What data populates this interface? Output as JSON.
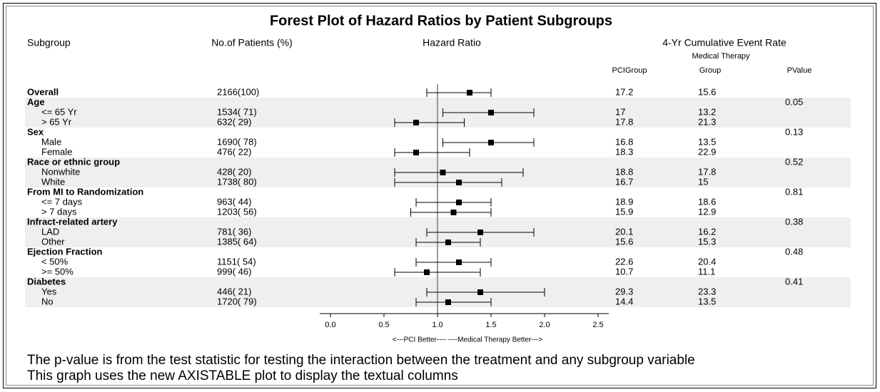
{
  "chart_data": {
    "type": "forest",
    "title": "Forest Plot of Hazard Ratios by Patient Subgroups",
    "columns": {
      "subgroup": "Subgroup",
      "patients": "No.of Patients (%)",
      "hazard_ratio": "Hazard Ratio",
      "event_rate": "4-Yr Cumulative Event Rate",
      "medical_top": "Medical Therapy",
      "pci": "PCIGroup",
      "medical": "Group",
      "pvalue": "PValue"
    },
    "x_axis_label": "<---PCI Better----    ----Medical Therapy Better--->",
    "xlim": [
      -0.1,
      2.6
    ],
    "xticks": [
      {
        "value": 0,
        "label": "0.0"
      },
      0.5,
      {
        "value": 1,
        "label": "1.0"
      },
      1.5,
      {
        "value": 2,
        "label": "2.0"
      },
      2.5
    ],
    "reference_line": 1,
    "marker_color": "#000000",
    "band_color": "#efefef",
    "overall": {
      "label": "Overall",
      "patients": "2166(100)",
      "hr": 1.3,
      "lower": 0.9,
      "upper": 1.5,
      "pci": 17.2,
      "medical": 15.6
    },
    "groups": [
      {
        "label": "Age",
        "pvalue": 0.05,
        "rows": [
          {
            "label": "<= 65 Yr",
            "patients": "1534( 71)",
            "hr": 1.5,
            "lower": 1.05,
            "upper": 1.9,
            "pci": 17,
            "medical": 13.2
          },
          {
            "label": "> 65 Yr",
            "patients": "632( 29)",
            "hr": 0.8,
            "lower": 0.6,
            "upper": 1.25,
            "pci": 17.8,
            "medical": 21.3
          }
        ]
      },
      {
        "label": "Sex",
        "pvalue": 0.13,
        "rows": [
          {
            "label": "Male",
            "patients": "1690( 78)",
            "hr": 1.5,
            "lower": 1.05,
            "upper": 1.9,
            "pci": 16.8,
            "medical": 13.5
          },
          {
            "label": "Female",
            "patients": "476( 22)",
            "hr": 0.8,
            "lower": 0.6,
            "upper": 1.3,
            "pci": 18.3,
            "medical": 22.9
          }
        ]
      },
      {
        "label": "Race or ethnic group",
        "pvalue": 0.52,
        "rows": [
          {
            "label": "Nonwhite",
            "patients": "428( 20)",
            "hr": 1.05,
            "lower": 0.6,
            "upper": 1.8,
            "pci": 18.8,
            "medical": 17.8
          },
          {
            "label": "White",
            "patients": "1738( 80)",
            "hr": 1.2,
            "lower": 0.6,
            "upper": 1.6,
            "pci": 16.7,
            "medical": 15
          }
        ]
      },
      {
        "label": "From MI to Randomization",
        "pvalue": 0.81,
        "rows": [
          {
            "label": "<= 7 days",
            "patients": "963( 44)",
            "hr": 1.2,
            "lower": 0.8,
            "upper": 1.5,
            "pci": 18.9,
            "medical": 18.6
          },
          {
            "label": "> 7 days",
            "patients": "1203( 56)",
            "hr": 1.15,
            "lower": 0.75,
            "upper": 1.5,
            "pci": 15.9,
            "medical": 12.9
          }
        ]
      },
      {
        "label": "Infract-related artery",
        "pvalue": 0.38,
        "rows": [
          {
            "label": "LAD",
            "patients": "781( 36)",
            "hr": 1.4,
            "lower": 0.9,
            "upper": 1.9,
            "pci": 20.1,
            "medical": 16.2
          },
          {
            "label": "Other",
            "patients": "1385( 64)",
            "hr": 1.1,
            "lower": 0.8,
            "upper": 1.4,
            "pci": 15.6,
            "medical": 15.3
          }
        ]
      },
      {
        "label": "Ejection Fraction",
        "pvalue": 0.48,
        "rows": [
          {
            "label": "< 50%",
            "patients": "1151( 54)",
            "hr": 1.2,
            "lower": 0.8,
            "upper": 1.5,
            "pci": 22.6,
            "medical": 20.4
          },
          {
            "label": ">= 50%",
            "patients": "999( 46)",
            "hr": 0.9,
            "lower": 0.6,
            "upper": 1.4,
            "pci": 10.7,
            "medical": 11.1
          }
        ]
      },
      {
        "label": "Diabetes",
        "pvalue": 0.41,
        "rows": [
          {
            "label": "Yes",
            "patients": "446( 21)",
            "hr": 1.4,
            "lower": 0.9,
            "upper": 2.0,
            "pci": 29.3,
            "medical": 23.3
          },
          {
            "label": "No",
            "patients": "1720( 79)",
            "hr": 1.1,
            "lower": 0.8,
            "upper": 1.5,
            "pci": 14.4,
            "medical": 13.5
          }
        ]
      }
    ],
    "footnotes": [
      "The p-value is from the test statistic for testing the interaction between the treatment and any subgroup variable",
      "This graph uses the new AXISTABLE plot to display the textual columns"
    ]
  }
}
